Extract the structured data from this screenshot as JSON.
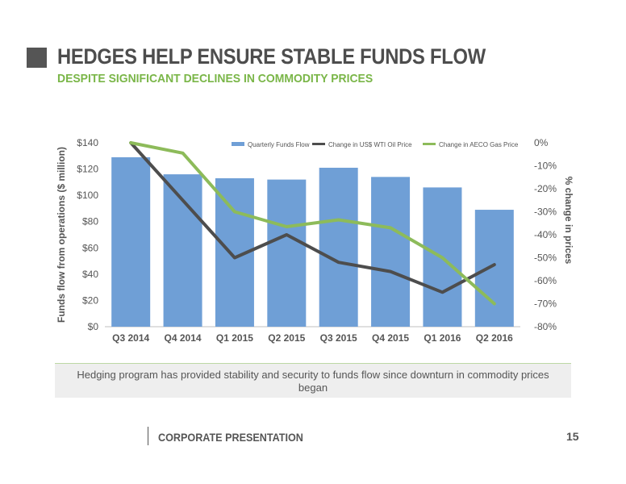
{
  "slide": {
    "title": "HEDGES HELP ENSURE STABLE FUNDS FLOW",
    "subtitle": "DESPITE SIGNIFICANT DECLINES IN COMMODITY PRICES",
    "callout": "Hedging program has provided stability and security to funds flow since downturn in commodity prices began",
    "footer_label": "CORPORATE PRESENTATION",
    "page_number": "15"
  },
  "colors": {
    "bar": "#6f9fd6",
    "wti_line": "#4d4d4d",
    "aeco_line": "#8dbb5a",
    "title": "#4d4d4d",
    "subtitle": "#7ab648"
  },
  "chart_data": {
    "type": "bar",
    "categories": [
      "Q3 2014",
      "Q4 2014",
      "Q1 2015",
      "Q2 2015",
      "Q3 2015",
      "Q4 2015",
      "Q1 2016",
      "Q2 2016"
    ],
    "series": [
      {
        "name": "Quarterly Funds Flow",
        "type": "bar",
        "axis": "left",
        "values": [
          129,
          116,
          113,
          112,
          121,
          114,
          106,
          89
        ]
      },
      {
        "name": "Change in US$ WTI Oil Price",
        "type": "line",
        "axis": "right",
        "values": [
          0,
          -25,
          -50,
          -40,
          -52,
          -56,
          -65,
          -53
        ]
      },
      {
        "name": "Change in AECO Gas Price",
        "type": "line",
        "axis": "right",
        "values": [
          0,
          -4.5,
          -30,
          -36.5,
          -33.5,
          -37,
          -50,
          -70
        ]
      }
    ],
    "ylabel": "Funds flow from operations ($ million)",
    "y2label": "% change in prices",
    "ylim": [
      0,
      140
    ],
    "y2lim": [
      -80,
      0
    ],
    "yticks": [
      "$0",
      "$20",
      "$40",
      "$60",
      "$80",
      "$100",
      "$120",
      "$140"
    ],
    "y2ticks": [
      "0%",
      "-10%",
      "-20%",
      "-30%",
      "-40%",
      "-50%",
      "-60%",
      "-70%",
      "-80%"
    ],
    "legend_position": "top",
    "grid": false
  }
}
